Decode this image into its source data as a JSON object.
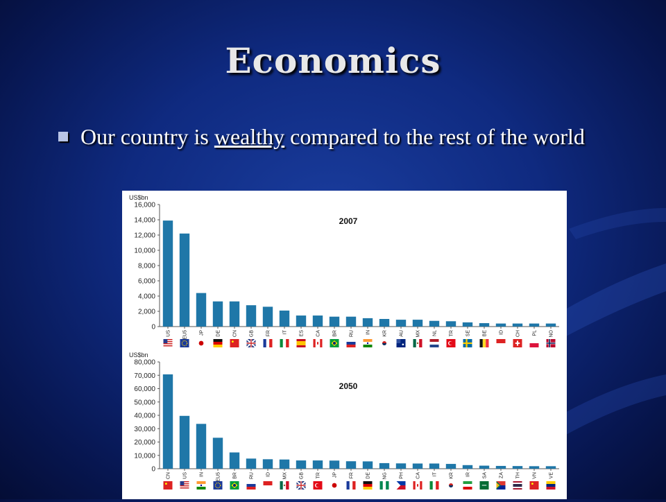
{
  "slide": {
    "title": "Economics",
    "bullet": {
      "before": "Our country is ",
      "emphasis": "wealthy",
      "after": " compared to the rest of the world"
    }
  },
  "colors": {
    "bar": "#1f77a8",
    "background": "#0f2a80",
    "title_text": "#e8e8e8"
  },
  "chart_data": [
    {
      "type": "bar",
      "title": "2007",
      "unit_label": "US$bn",
      "ylim": [
        0,
        16000
      ],
      "yticks": [
        "0",
        "2,000",
        "4,000",
        "6,000",
        "8,000",
        "10,000",
        "12,000",
        "14,000",
        "16,000"
      ],
      "categories": [
        "US",
        "EU5",
        "JP",
        "DE",
        "CN",
        "GB",
        "FR",
        "IT",
        "ES",
        "CA",
        "BR",
        "RU",
        "IN",
        "KR",
        "AU",
        "MX",
        "NL",
        "TR",
        "SE",
        "BE",
        "ID",
        "CH",
        "PL",
        "NO"
      ],
      "values": [
        13900,
        12200,
        4400,
        3300,
        3300,
        2800,
        2600,
        2100,
        1450,
        1450,
        1300,
        1300,
        1100,
        1000,
        900,
        900,
        750,
        700,
        550,
        450,
        400,
        400,
        400,
        400
      ]
    },
    {
      "type": "bar",
      "title": "2050",
      "unit_label": "US$bn",
      "ylim": [
        0,
        80000
      ],
      "yticks": [
        "0",
        "10,000",
        "20,000",
        "30,000",
        "40,000",
        "50,000",
        "60,000",
        "70,000",
        "80,000"
      ],
      "categories": [
        "CN",
        "US",
        "IN",
        "EU5",
        "BR",
        "RU",
        "ID",
        "MX",
        "GB",
        "TR",
        "JP",
        "FR",
        "DE",
        "NG",
        "PH",
        "CA",
        "IT",
        "KR",
        "IR",
        "SA",
        "ZA",
        "TH",
        "VN",
        "VE"
      ],
      "values": [
        70700,
        39600,
        33600,
        23200,
        12200,
        7600,
        7100,
        6900,
        6200,
        6200,
        6100,
        5600,
        5500,
        4200,
        4000,
        3900,
        3900,
        3600,
        2700,
        2300,
        2100,
        2000,
        1900,
        1900
      ]
    }
  ],
  "flags": {
    "2007": [
      "US",
      "EU",
      "JP",
      "DE",
      "CN",
      "GB",
      "FR",
      "IT",
      "ES",
      "CA",
      "BR",
      "RU",
      "IN",
      "KR",
      "AU",
      "MX",
      "NL",
      "TR",
      "SE",
      "BE",
      "ID",
      "CH",
      "PL",
      "NO"
    ],
    "2050": [
      "CN",
      "US",
      "IN",
      "EU",
      "BR",
      "RU",
      "ID",
      "MX",
      "GB",
      "TR",
      "JP",
      "FR",
      "DE",
      "NG",
      "PH",
      "CA",
      "IT",
      "KR",
      "IR",
      "SA",
      "ZA",
      "TH",
      "VN",
      "VE"
    ]
  }
}
